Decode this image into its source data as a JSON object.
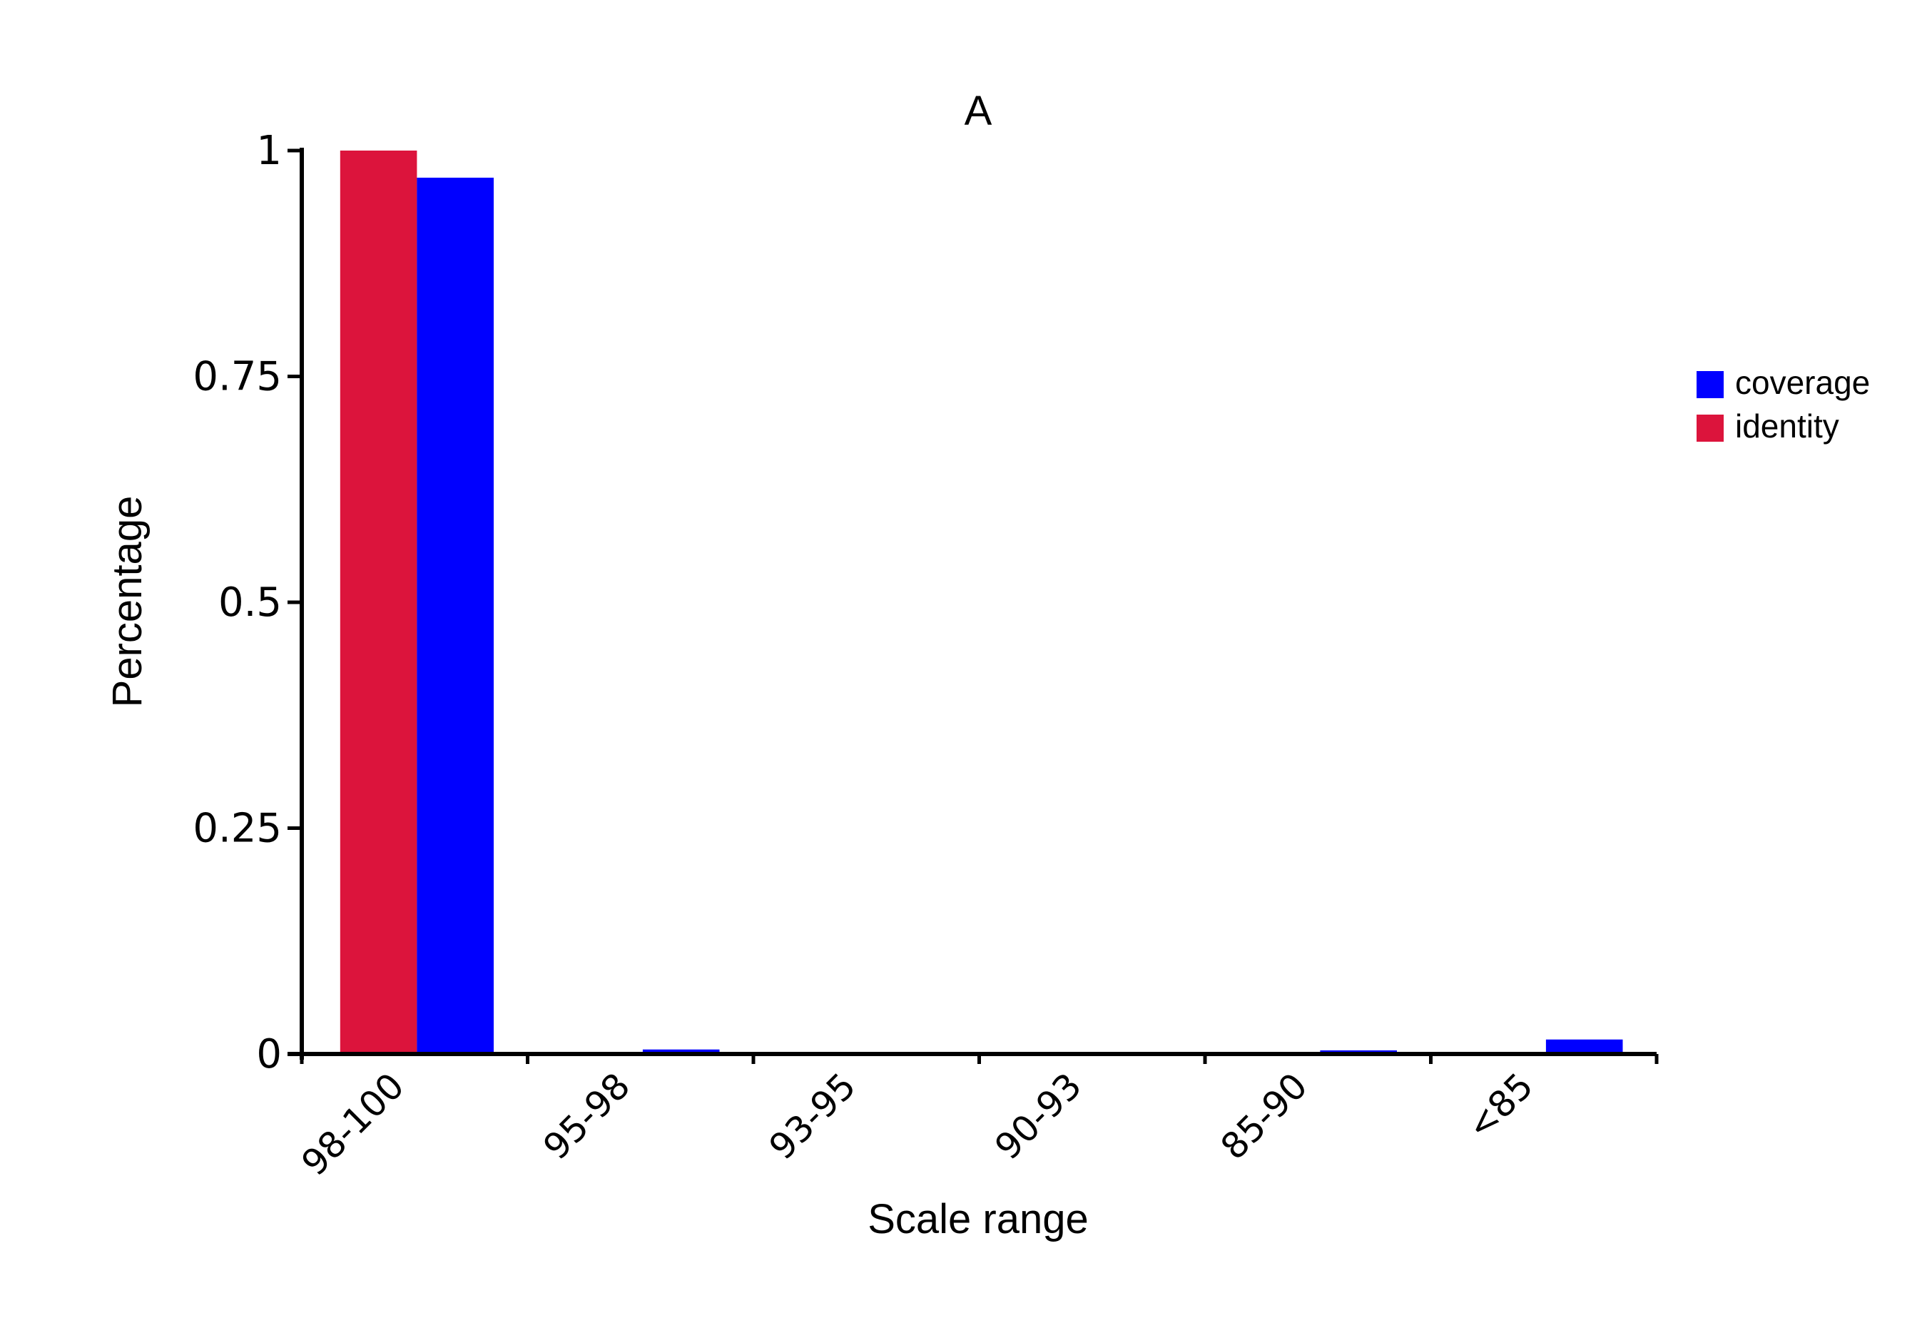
{
  "chart_data": {
    "type": "bar",
    "title": "A",
    "xlabel": "Scale range",
    "ylabel": "Percentage",
    "categories": [
      "98-100",
      "95-98",
      "93-95",
      "90-93",
      "85-90",
      "<85"
    ],
    "series": [
      {
        "name": "identity",
        "color": "#DC143C",
        "values": [
          1.0,
          0.0,
          0.0,
          0.0,
          0.0,
          0.0
        ]
      },
      {
        "name": "coverage",
        "color": "#0000FF",
        "values": [
          0.97,
          0.005,
          0.002,
          0.002,
          0.004,
          0.016
        ]
      }
    ],
    "ylim": [
      0,
      1
    ],
    "yticks": [
      0,
      0.25,
      0.5,
      0.75,
      1
    ],
    "ytick_labels": [
      "0",
      "0.25",
      "0.5",
      "0.75",
      "1"
    ],
    "grid": false,
    "legend": {
      "placement": "right",
      "entries": [
        {
          "name": "coverage",
          "color": "#0000FF"
        },
        {
          "name": "identity",
          "color": "#DC143C"
        }
      ]
    }
  }
}
